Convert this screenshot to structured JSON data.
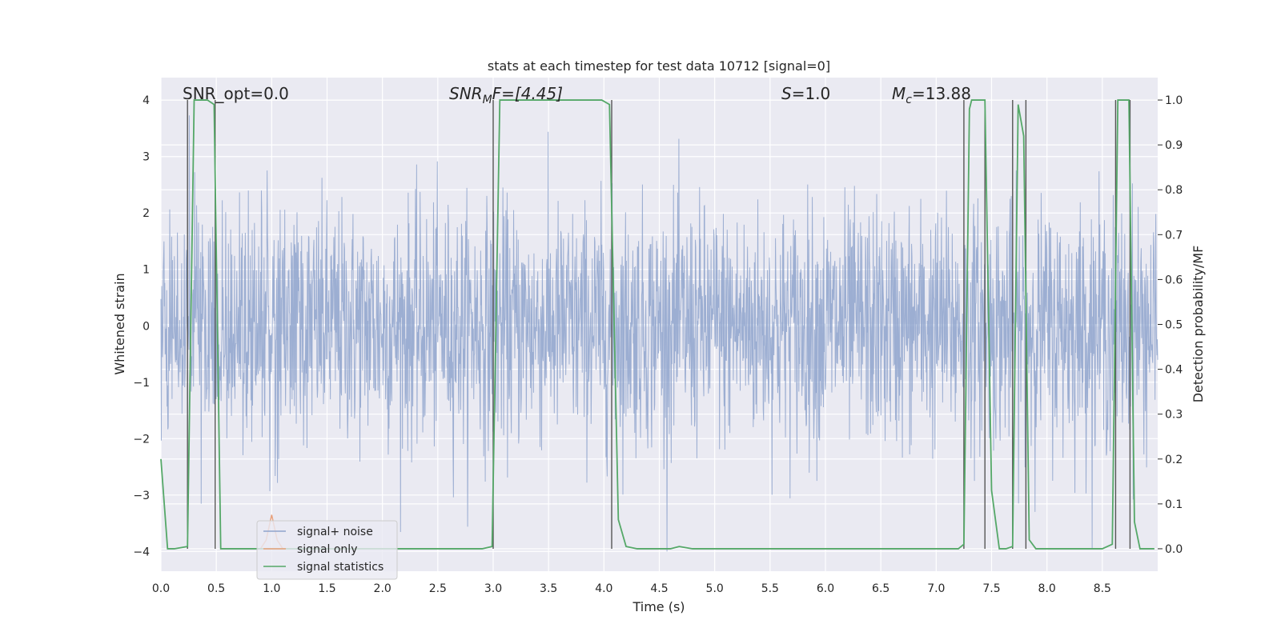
{
  "chart_data": {
    "type": "line",
    "title": "stats at each timestep for test data 10712 [signal=0]",
    "xlabel": "Time (s)",
    "ylabel": "Whitened strain",
    "ylabel_right": "Detection probability/MF",
    "xlim": [
      0.0,
      9.0
    ],
    "ylim": [
      -4.35,
      4.4
    ],
    "ylim_right": [
      -0.05,
      1.05
    ],
    "x_ticks": [
      "0.0",
      "0.5",
      "1.0",
      "1.5",
      "2.0",
      "2.5",
      "3.0",
      "3.5",
      "4.0",
      "4.5",
      "5.0",
      "5.5",
      "6.0",
      "6.5",
      "7.0",
      "7.5",
      "8.0",
      "8.5"
    ],
    "y_ticks": [
      "−4",
      "−3",
      "−2",
      "−1",
      "0",
      "1",
      "2",
      "3",
      "4"
    ],
    "y_ticks_right": [
      "0.0",
      "0.1",
      "0.2",
      "0.3",
      "0.4",
      "0.5",
      "0.6",
      "0.7",
      "0.8",
      "0.9",
      "1.0"
    ],
    "grid": true,
    "legend_position": "lower-left",
    "annotations": {
      "snr_opt": "SNR_opt=0.0",
      "snr_mf_main": "SNR",
      "snr_mf_sub": "M",
      "snr_mf_tail": "F=[4.45]",
      "s_main": "S",
      "s_tail": "=1.0",
      "mc_main": "M",
      "mc_sub": "c",
      "mc_tail": "=13.88"
    },
    "series": [
      {
        "name": "signal+ noise",
        "color": "#8ea3cc",
        "description_values": "whitened strain noise, approx. uniform amplitude between -4 and 4"
      },
      {
        "name": "signal only",
        "color": "#e8a17c",
        "x": [
          0.9,
          0.95,
          1.0,
          1.05,
          1.1
        ],
        "values": [
          -3.95,
          -3.8,
          -3.35,
          -3.8,
          -3.95
        ]
      },
      {
        "name": "signal statistics",
        "color": "#55a868",
        "axis": "right",
        "x": [
          0.0,
          0.06,
          0.12,
          0.24,
          0.3,
          0.36,
          0.42,
          0.48,
          0.54,
          0.6,
          0.66,
          0.9,
          2.9,
          2.99,
          3.06,
          3.5,
          3.98,
          4.05,
          4.13,
          4.2,
          4.3,
          4.6,
          4.68,
          4.8,
          5.5,
          6.5,
          7.2,
          7.25,
          7.3,
          7.32,
          7.37,
          7.44,
          7.5,
          7.57,
          7.63,
          7.69,
          7.74,
          7.79,
          7.84,
          7.9,
          8.0,
          8.5,
          8.59,
          8.64,
          8.69,
          8.74,
          8.79,
          8.84,
          8.9,
          8.97
        ],
        "values": [
          0.2,
          0.0,
          0.0,
          0.005,
          1.0,
          1.0,
          1.0,
          0.99,
          0.0,
          0.0,
          0.0,
          0.0,
          0.0,
          0.005,
          1.0,
          1.0,
          1.0,
          0.99,
          0.065,
          0.005,
          0.0,
          0.0,
          0.005,
          0.0,
          0.0,
          0.0,
          0.0,
          0.01,
          0.98,
          1.0,
          1.0,
          1.0,
          0.13,
          0.0,
          0.0,
          0.005,
          0.99,
          0.92,
          0.02,
          0.0,
          0.0,
          0.0,
          0.01,
          1.0,
          1.0,
          1.0,
          0.06,
          0.0,
          0.0,
          0.0
        ]
      }
    ],
    "vertical_markers_x": [
      0.24,
      0.49,
      3.0,
      4.07,
      7.25,
      7.44,
      7.69,
      7.81,
      8.62,
      8.75
    ]
  }
}
